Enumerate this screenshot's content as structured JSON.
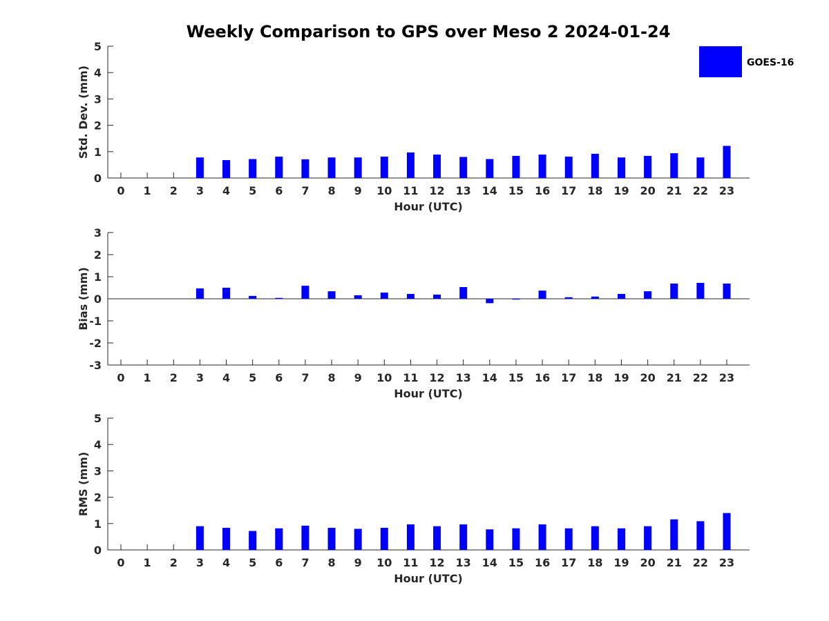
{
  "title": "Weekly Comparison to GPS over Meso 2 2024-01-24",
  "bar_color": "#0000ff",
  "legend": {
    "label": "GOES-16",
    "placement": "top-right"
  },
  "chart_data": [
    {
      "type": "bar",
      "xlabel": "Hour (UTC)",
      "ylabel": "Std. Dev. (mm)",
      "categories": [
        "0",
        "1",
        "2",
        "3",
        "4",
        "5",
        "6",
        "7",
        "8",
        "9",
        "10",
        "11",
        "12",
        "13",
        "14",
        "15",
        "16",
        "17",
        "18",
        "19",
        "20",
        "21",
        "22",
        "23"
      ],
      "series": [
        {
          "name": "GOES-16",
          "values": [
            null,
            null,
            null,
            0.78,
            0.68,
            0.72,
            0.81,
            0.71,
            0.78,
            0.78,
            0.81,
            0.97,
            0.89,
            0.8,
            0.72,
            0.84,
            0.89,
            0.81,
            0.92,
            0.78,
            0.84,
            0.94,
            0.78,
            1.22
          ]
        }
      ],
      "ylim": [
        0,
        5
      ],
      "yticks": [
        0,
        1,
        2,
        3,
        4,
        5
      ]
    },
    {
      "type": "bar",
      "xlabel": "Hour (UTC)",
      "ylabel": "Bias (mm)",
      "categories": [
        "0",
        "1",
        "2",
        "3",
        "4",
        "5",
        "6",
        "7",
        "8",
        "9",
        "10",
        "11",
        "12",
        "13",
        "14",
        "15",
        "16",
        "17",
        "18",
        "19",
        "20",
        "21",
        "22",
        "23"
      ],
      "series": [
        {
          "name": "GOES-16",
          "values": [
            null,
            null,
            null,
            0.47,
            0.5,
            0.13,
            0.04,
            0.59,
            0.34,
            0.16,
            0.28,
            0.22,
            0.19,
            0.53,
            -0.2,
            0.0,
            0.37,
            0.07,
            0.1,
            0.22,
            0.34,
            0.69,
            0.72,
            0.69
          ]
        }
      ],
      "ylim": [
        -3,
        3
      ],
      "yticks": [
        -3,
        -2,
        -1,
        0,
        1,
        2,
        3
      ]
    },
    {
      "type": "bar",
      "xlabel": "Hour (UTC)",
      "ylabel": "RMS (mm)",
      "categories": [
        "0",
        "1",
        "2",
        "3",
        "4",
        "5",
        "6",
        "7",
        "8",
        "9",
        "10",
        "11",
        "12",
        "13",
        "14",
        "15",
        "16",
        "17",
        "18",
        "19",
        "20",
        "21",
        "22",
        "23"
      ],
      "series": [
        {
          "name": "GOES-16",
          "values": [
            null,
            null,
            null,
            0.9,
            0.84,
            0.72,
            0.82,
            0.92,
            0.84,
            0.8,
            0.84,
            0.97,
            0.9,
            0.97,
            0.78,
            0.82,
            0.97,
            0.82,
            0.9,
            0.82,
            0.9,
            1.16,
            1.09,
            1.4
          ]
        }
      ],
      "ylim": [
        0,
        5
      ],
      "yticks": [
        0,
        1,
        2,
        3,
        4,
        5
      ]
    }
  ]
}
